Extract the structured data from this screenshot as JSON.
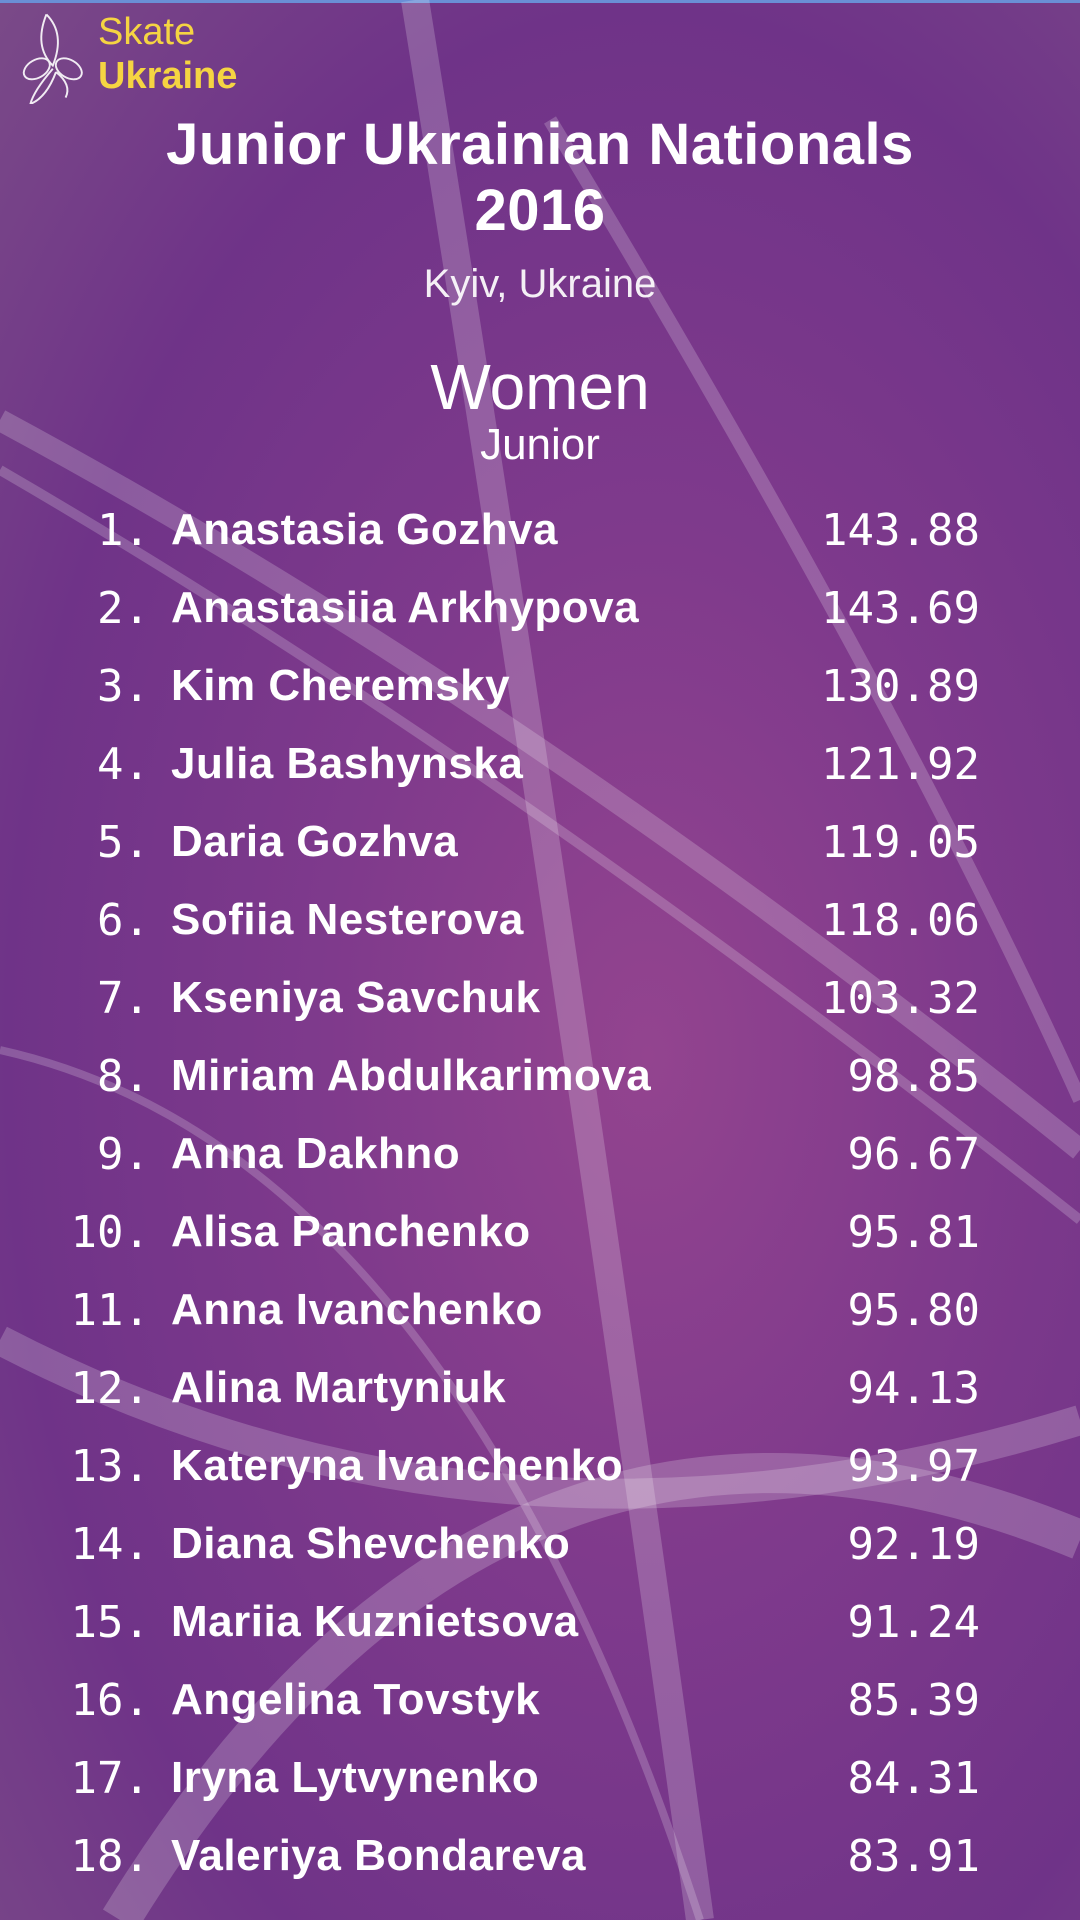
{
  "header": {
    "title_line1": "Junior Ukrainian Nationals",
    "title_line2": "2016",
    "location": "Kyiv, Ukraine"
  },
  "category": {
    "discipline": "Women",
    "level": "Junior"
  },
  "results": [
    {
      "rank": "1.",
      "name": "Anastasia Gozhva",
      "score": "143.88"
    },
    {
      "rank": "2.",
      "name": "Anastasiia Arkhypova",
      "score": "143.69"
    },
    {
      "rank": "3.",
      "name": "Kim Cheremsky",
      "score": "130.89"
    },
    {
      "rank": "4.",
      "name": "Julia Bashynska",
      "score": "121.92"
    },
    {
      "rank": "5.",
      "name": "Daria Gozhva",
      "score": "119.05"
    },
    {
      "rank": "6.",
      "name": "Sofiia Nesterova",
      "score": "118.06"
    },
    {
      "rank": "7.",
      "name": "Kseniya Savchuk",
      "score": "103.32"
    },
    {
      "rank": "8.",
      "name": "Miriam Abdulkarimova",
      "score": "98.85"
    },
    {
      "rank": "9.",
      "name": "Anna Dakhno",
      "score": "96.67"
    },
    {
      "rank": "10.",
      "name": "Alisa Panchenko",
      "score": "95.81"
    },
    {
      "rank": "11.",
      "name": "Anna Ivanchenko",
      "score": "95.80"
    },
    {
      "rank": "12.",
      "name": "Alina Martyniuk",
      "score": "94.13"
    },
    {
      "rank": "13.",
      "name": "Kateryna Ivanchenko",
      "score": "93.97"
    },
    {
      "rank": "14.",
      "name": "Diana Shevchenko",
      "score": "92.19"
    },
    {
      "rank": "15.",
      "name": "Mariia Kuznietsova",
      "score": "91.24"
    },
    {
      "rank": "16.",
      "name": "Angelina Tovstyk",
      "score": "85.39"
    },
    {
      "rank": "17.",
      "name": "Iryna Lytvynenko",
      "score": "84.31"
    },
    {
      "rank": "18.",
      "name": "Valeriya Bondareva",
      "score": "83.91"
    }
  ],
  "logo": {
    "line1": "Skate",
    "line2": "Ukraine",
    "color": "#f5d442"
  },
  "colors": {
    "background": "#7f3a8c",
    "text": "#ffffff"
  }
}
